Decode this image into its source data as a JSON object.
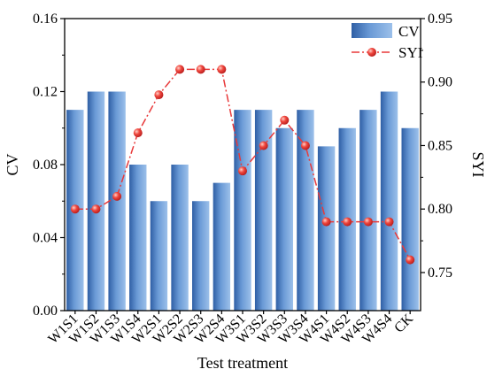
{
  "chart_data": {
    "type": "bar",
    "categories": [
      "W1S1",
      "W1S2",
      "W1S3",
      "W1S4",
      "W2S1",
      "W2S2",
      "W2S3",
      "W2S4",
      "W3S1",
      "W3S2",
      "W3S3",
      "W3S4",
      "W4S1",
      "W4S2",
      "W4S3",
      "W4S4",
      "CK"
    ],
    "series": [
      {
        "name": "CV",
        "type": "bar",
        "axis": "left",
        "color": "#4a7fc1",
        "values": [
          0.11,
          0.12,
          0.12,
          0.08,
          0.06,
          0.08,
          0.06,
          0.07,
          0.11,
          0.11,
          0.1,
          0.11,
          0.09,
          0.1,
          0.11,
          0.12,
          0.1
        ]
      },
      {
        "name": "SYI",
        "type": "line",
        "axis": "right",
        "color": "#e8393a",
        "line_style": "dash-dot",
        "marker": "sphere",
        "values": [
          0.8,
          0.8,
          0.81,
          0.86,
          0.89,
          0.91,
          0.91,
          0.91,
          0.83,
          0.85,
          0.87,
          0.85,
          0.79,
          0.79,
          0.79,
          0.79,
          0.76
        ]
      }
    ],
    "xlabel": "Test treatment",
    "ylabel": "CV",
    "y2label": "SYI",
    "ylim": [
      0,
      0.16
    ],
    "y2lim": [
      0.72,
      0.95
    ],
    "yticks": [
      "0.00",
      "0.04",
      "0.08",
      "0.12",
      "0.16"
    ],
    "y2ticks": [
      "0.75",
      "0.80",
      "0.85",
      "0.90",
      "0.95"
    ],
    "legend_position": "top-right",
    "grid": false
  }
}
